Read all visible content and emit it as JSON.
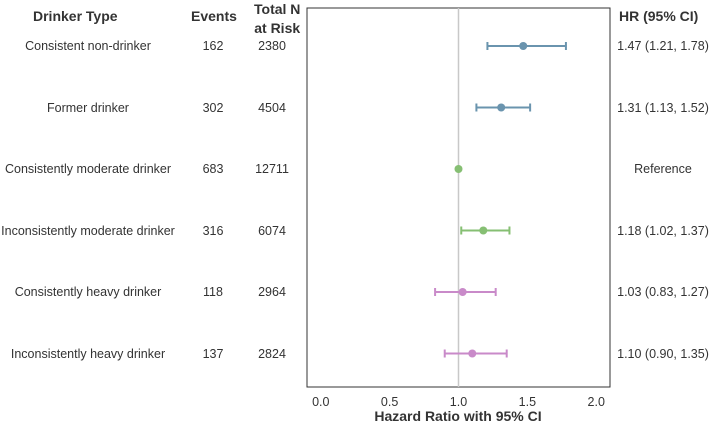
{
  "headers": {
    "drinker_type": "Drinker Type",
    "events": "Events",
    "total_n_line1": "Total N",
    "total_n_line2": "at Risk",
    "hr": "HR (95% CI)"
  },
  "chart_data": {
    "type": "forest",
    "xlabel": "Hazard Ratio with 95% CI",
    "xlim": [
      -0.1,
      2.1
    ],
    "xticks": [
      0.0,
      0.5,
      1.0,
      1.5,
      2.0
    ],
    "xtick_labels": [
      "0.0",
      "0.5",
      "1.0",
      "1.5",
      "2.0"
    ],
    "reference_line": 1.0,
    "grid": false,
    "rows": [
      {
        "label": "Consistent non-drinker",
        "events": "162",
        "total": "2380",
        "hr": 1.47,
        "lo": 1.21,
        "hi": 1.78,
        "hr_text": "1.47 (1.21, 1.78)",
        "color": "#6a94ae"
      },
      {
        "label": "Former drinker",
        "events": "302",
        "total": "4504",
        "hr": 1.31,
        "lo": 1.13,
        "hi": 1.52,
        "hr_text": "1.31 (1.13, 1.52)",
        "color": "#6a94ae"
      },
      {
        "label": "Consistently moderate drinker",
        "events": "683",
        "total": "12711",
        "hr": 1.0,
        "lo": null,
        "hi": null,
        "hr_text": "Reference",
        "color": "#86bf73"
      },
      {
        "label": "Inconsistently moderate drinker",
        "events": "316",
        "total": "6074",
        "hr": 1.18,
        "lo": 1.02,
        "hi": 1.37,
        "hr_text": "1.18 (1.02, 1.37)",
        "color": "#86bf73"
      },
      {
        "label": "Consistently heavy drinker",
        "events": "118",
        "total": "2964",
        "hr": 1.03,
        "lo": 0.83,
        "hi": 1.27,
        "hr_text": "1.03 (0.83, 1.27)",
        "color": "#c98ac9"
      },
      {
        "label": "Inconsistently heavy drinker",
        "events": "137",
        "total": "2824",
        "hr": 1.1,
        "lo": 0.9,
        "hi": 1.35,
        "hr_text": "1.10 (0.90, 1.35)",
        "color": "#c98ac9"
      }
    ]
  }
}
